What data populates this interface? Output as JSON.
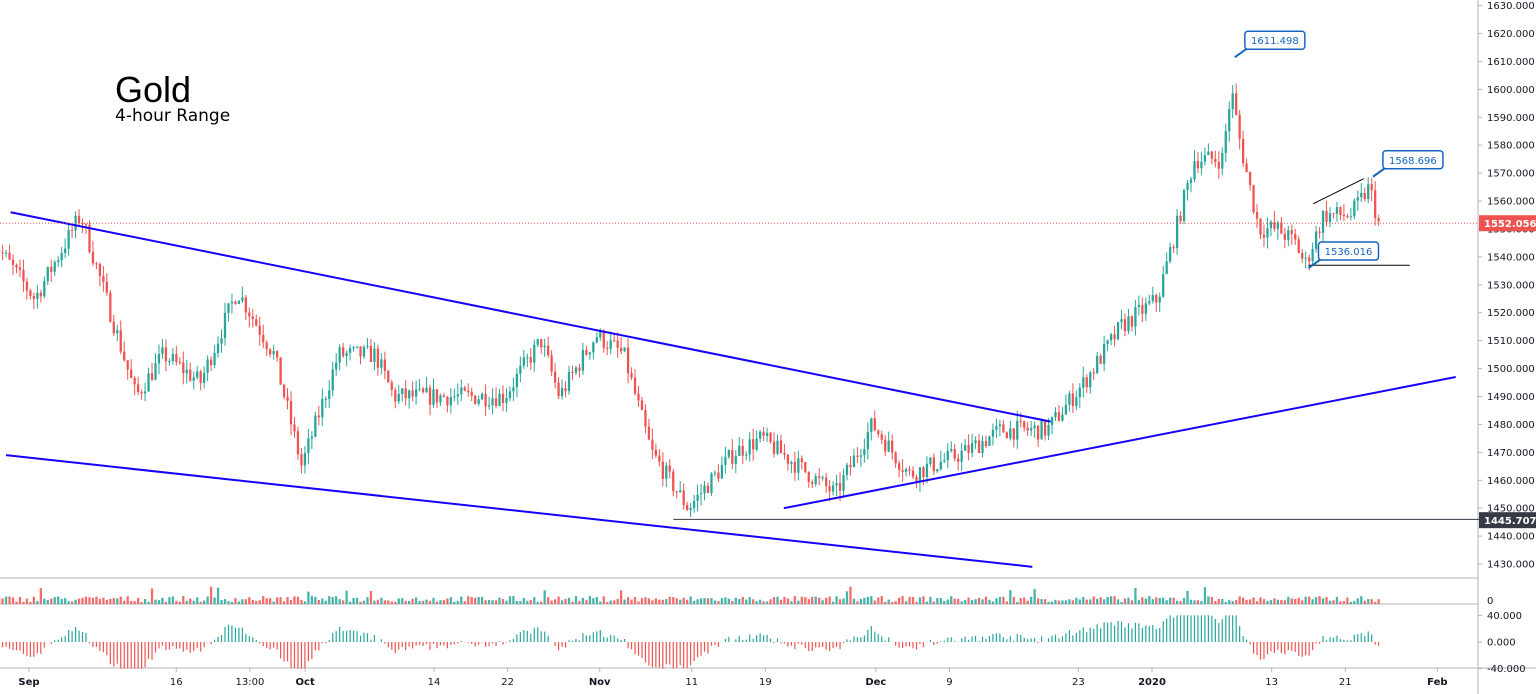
{
  "chart_data": {
    "type": "candlestick",
    "title": "Gold",
    "subtitle": "4-hour Range",
    "x_ticks": [
      {
        "label": "Sep",
        "bold": true
      },
      {
        "label": "16",
        "bold": false
      },
      {
        "label": "13:00",
        "bold": false
      },
      {
        "label": "Oct",
        "bold": true
      },
      {
        "label": "14",
        "bold": false
      },
      {
        "label": "22",
        "bold": false
      },
      {
        "label": "Nov",
        "bold": true
      },
      {
        "label": "11",
        "bold": false
      },
      {
        "label": "19",
        "bold": false
      },
      {
        "label": "Dec",
        "bold": true
      },
      {
        "label": "9",
        "bold": false
      },
      {
        "label": "23",
        "bold": false
      },
      {
        "label": "2020",
        "bold": true
      },
      {
        "label": "13",
        "bold": false
      },
      {
        "label": "21",
        "bold": false
      },
      {
        "label": "Feb",
        "bold": true
      }
    ],
    "x_tick_days": [
      0,
      16,
      24,
      30,
      44,
      52,
      62,
      72,
      80,
      92,
      100,
      114,
      122,
      135,
      143,
      153
    ],
    "price_axis": {
      "ylim": [
        1425,
        1632
      ],
      "ticks": [
        "1430.000",
        "1440.000",
        "1450.000",
        "1460.000",
        "1470.000",
        "1480.000",
        "1490.000",
        "1500.000",
        "1510.000",
        "1520.000",
        "1530.000",
        "1540.000",
        "1550.000",
        "1560.000",
        "1570.000",
        "1580.000",
        "1590.000",
        "1600.000",
        "1610.000",
        "1620.000",
        "1630.000"
      ],
      "current_price": "1552.056",
      "marked_low": "1445.707",
      "current_color": "#ef5350",
      "marked_color": "#363a45"
    },
    "volume_axis": {
      "tick": "0"
    },
    "oscillator_axis": {
      "ticks": [
        "40.000",
        "0.000",
        "-40.000"
      ],
      "ylim": [
        -48,
        48
      ]
    },
    "price_path": [
      {
        "day": -4,
        "price": 1548
      },
      {
        "day": 1,
        "price": 1525
      },
      {
        "day": 6,
        "price": 1555
      },
      {
        "day": 12,
        "price": 1490
      },
      {
        "day": 15,
        "price": 1505
      },
      {
        "day": 19,
        "price": 1495
      },
      {
        "day": 23,
        "price": 1528
      },
      {
        "day": 27,
        "price": 1505
      },
      {
        "day": 30,
        "price": 1465
      },
      {
        "day": 34,
        "price": 1505
      },
      {
        "day": 38,
        "price": 1505
      },
      {
        "day": 40,
        "price": 1490
      },
      {
        "day": 43,
        "price": 1490
      },
      {
        "day": 47,
        "price": 1490
      },
      {
        "day": 52,
        "price": 1490
      },
      {
        "day": 56,
        "price": 1510
      },
      {
        "day": 58,
        "price": 1490
      },
      {
        "day": 62,
        "price": 1512
      },
      {
        "day": 65,
        "price": 1505
      },
      {
        "day": 68,
        "price": 1470
      },
      {
        "day": 72,
        "price": 1450
      },
      {
        "day": 77,
        "price": 1470
      },
      {
        "day": 80,
        "price": 1475
      },
      {
        "day": 84,
        "price": 1465
      },
      {
        "day": 88,
        "price": 1455
      },
      {
        "day": 92,
        "price": 1480
      },
      {
        "day": 96,
        "price": 1462
      },
      {
        "day": 102,
        "price": 1470
      },
      {
        "day": 106,
        "price": 1478
      },
      {
        "day": 111,
        "price": 1478
      },
      {
        "day": 115,
        "price": 1495
      },
      {
        "day": 119,
        "price": 1515
      },
      {
        "day": 123,
        "price": 1525
      },
      {
        "day": 125,
        "price": 1550
      },
      {
        "day": 127,
        "price": 1575
      },
      {
        "day": 130,
        "price": 1575
      },
      {
        "day": 131,
        "price": 1600
      },
      {
        "day": 132,
        "price": 1580
      },
      {
        "day": 134,
        "price": 1550
      },
      {
        "day": 136,
        "price": 1550
      },
      {
        "day": 138,
        "price": 1545
      },
      {
        "day": 139,
        "price": 1537
      },
      {
        "day": 141,
        "price": 1555
      },
      {
        "day": 144,
        "price": 1555
      },
      {
        "day": 146,
        "price": 1565
      },
      {
        "day": 147,
        "price": 1552
      }
    ],
    "candle_count": 400,
    "day_range": [
      -4,
      147
    ],
    "trend_lines": [
      {
        "from": {
          "day": -2,
          "price": 1556
        },
        "to": {
          "day": 111,
          "price": 1481
        },
        "color": "#1500ff"
      },
      {
        "from": {
          "day": -2.5,
          "price": 1469
        },
        "to": {
          "day": 109,
          "price": 1429
        },
        "color": "#1500ff"
      },
      {
        "from": {
          "day": 82,
          "price": 1450
        },
        "to": {
          "day": 155,
          "price": 1497
        },
        "color": "#1500ff"
      },
      {
        "from": {
          "day": 70,
          "price": 1446
        },
        "to": {
          "day": 158,
          "price": 1446
        },
        "color": "#363a45"
      },
      {
        "from": {
          "day": 139,
          "price": 1537
        },
        "to": {
          "day": 150,
          "price": 1537
        },
        "color": "#000000"
      },
      {
        "from": {
          "day": 139.5,
          "price": 1559
        },
        "to": {
          "day": 145,
          "price": 1568
        },
        "color": "#000000"
      }
    ],
    "callouts": [
      {
        "label": "1611.498",
        "anchor_day": 131,
        "anchor_price": 1611.5,
        "side": "up-right"
      },
      {
        "label": "1568.696",
        "anchor_day": 146,
        "anchor_price": 1568.7,
        "side": "up-right"
      },
      {
        "label": "1536.016",
        "anchor_day": 139,
        "anchor_price": 1536.0,
        "side": "up-right"
      }
    ],
    "colors": {
      "up": "#26a69a",
      "down": "#ef5350",
      "grid": "#ffffff",
      "axis_border": "#b2b5be"
    }
  }
}
